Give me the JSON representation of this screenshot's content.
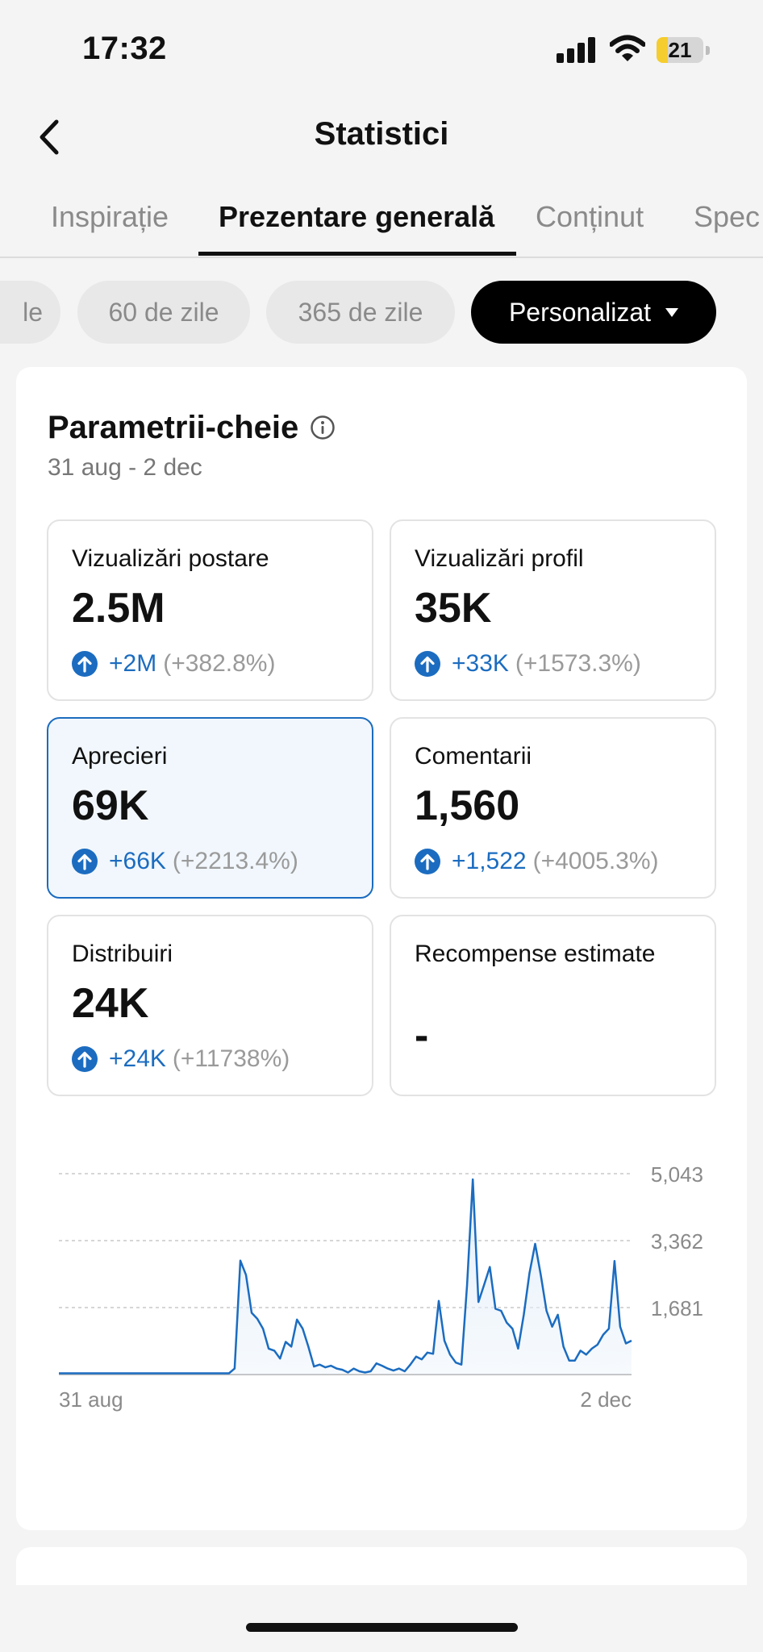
{
  "status_bar": {
    "time": "17:32",
    "battery_level": "21"
  },
  "header": {
    "title": "Statistici"
  },
  "tabs": [
    {
      "label": "Inspirație"
    },
    {
      "label": "Prezentare generală",
      "active": true
    },
    {
      "label": "Conținut"
    },
    {
      "label": "Spec"
    }
  ],
  "period_pills": [
    {
      "label": "le"
    },
    {
      "label": "60 de zile"
    },
    {
      "label": "365 de zile"
    },
    {
      "label": "Personalizat",
      "active": true
    }
  ],
  "key_metrics": {
    "title": "Parametrii-cheie",
    "date_range": "31 aug - 2 dec",
    "cards": [
      {
        "label": "Vizualizări postare",
        "value": "2.5M",
        "delta": "+2M",
        "pct": "(+382.8%)"
      },
      {
        "label": "Vizualizări profil",
        "value": "35K",
        "delta": "+33K",
        "pct": "(+1573.3%)"
      },
      {
        "label": "Aprecieri",
        "value": "69K",
        "delta": "+66K",
        "pct": "(+2213.4%)",
        "selected": true
      },
      {
        "label": "Comentarii",
        "value": "1,560",
        "delta": "+1,522",
        "pct": "(+4005.3%)"
      },
      {
        "label": "Distribuiri",
        "value": "24K",
        "delta": "+24K",
        "pct": "(+11738%)"
      },
      {
        "label": "Recompense estimate",
        "value": "-"
      }
    ]
  },
  "colors": {
    "accent": "#1b6cc0",
    "chart_fill": "#e6f0fa"
  },
  "chart_data": {
    "type": "area",
    "y_ticks": [
      "5,043",
      "3,362",
      "1,681"
    ],
    "x_tick_labels": [
      "31 aug",
      "2 dec"
    ],
    "ylim": [
      0,
      5043
    ],
    "grid": true,
    "values": [
      30,
      30,
      30,
      30,
      30,
      30,
      30,
      30,
      30,
      30,
      30,
      30,
      30,
      30,
      30,
      30,
      30,
      30,
      30,
      30,
      30,
      30,
      30,
      30,
      30,
      30,
      30,
      30,
      30,
      30,
      30,
      150,
      2860,
      2500,
      1550,
      1400,
      1150,
      650,
      600,
      400,
      820,
      700,
      1380,
      1150,
      700,
      200,
      250,
      180,
      220,
      150,
      120,
      50,
      150,
      80,
      50,
      80,
      280,
      220,
      150,
      100,
      150,
      80,
      250,
      450,
      380,
      550,
      520,
      1850,
      850,
      500,
      300,
      250,
      2250,
      4900,
      1820,
      2250,
      2700,
      1650,
      1600,
      1300,
      1150,
      650,
      1500,
      2550,
      3280,
      2500,
      1600,
      1200,
      1500,
      700,
      350,
      350,
      600,
      500,
      650,
      750,
      1000,
      1150,
      2850,
      1200,
      780,
      850
    ]
  }
}
